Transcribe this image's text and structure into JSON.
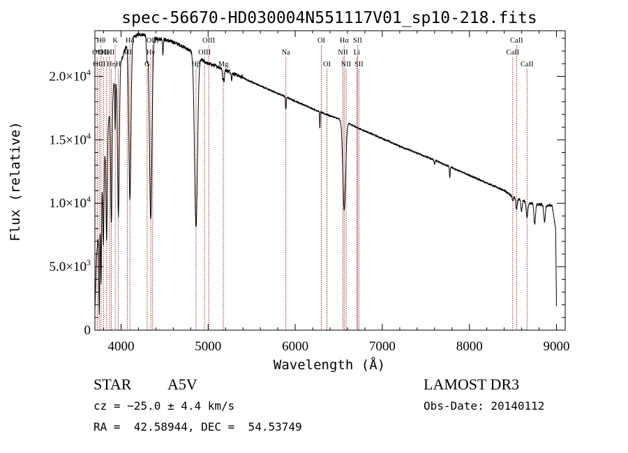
{
  "chart_data": {
    "type": "line",
    "title": "spec-56670-HD030004N551117V01_sp10-218.fits",
    "xlabel": "Wavelength (Å)",
    "ylabel": "Flux (relative)",
    "xlim": [
      3700,
      9100
    ],
    "ylim": [
      0,
      23600
    ],
    "xticks": [
      {
        "value": 4000,
        "label": "4000"
      },
      {
        "value": 5000,
        "label": "5000"
      },
      {
        "value": 6000,
        "label": "6000"
      },
      {
        "value": 7000,
        "label": "7000"
      },
      {
        "value": 8000,
        "label": "8000"
      },
      {
        "value": 9000,
        "label": "9000"
      }
    ],
    "yticks": [
      {
        "value": 0,
        "mant": "0",
        "exp": ""
      },
      {
        "value": 5000,
        "mant": "5.0×10",
        "exp": "3"
      },
      {
        "value": 10000,
        "mant": "1.0×10",
        "exp": "4"
      },
      {
        "value": 15000,
        "mant": "1.5×10",
        "exp": "4"
      },
      {
        "value": 20000,
        "mant": "2.0×10",
        "exp": "4"
      }
    ],
    "continuum": [
      [
        3700,
        1500
      ],
      [
        3720,
        6000
      ],
      [
        3760,
        9000
      ],
      [
        3800,
        13000
      ],
      [
        3850,
        16000
      ],
      [
        3900,
        19000
      ],
      [
        3950,
        20000
      ],
      [
        4000,
        21200
      ],
      [
        4050,
        22200
      ],
      [
        4100,
        22800
      ],
      [
        4150,
        23100
      ],
      [
        4200,
        23300
      ],
      [
        4260,
        23300
      ],
      [
        4320,
        23200
      ],
      [
        4400,
        23000
      ],
      [
        4500,
        22900
      ],
      [
        4600,
        22700
      ],
      [
        4700,
        22400
      ],
      [
        4800,
        22000
      ],
      [
        4900,
        21400
      ],
      [
        5000,
        21000
      ],
      [
        5100,
        20800
      ],
      [
        5200,
        20500
      ],
      [
        5300,
        20200
      ],
      [
        5400,
        19900
      ],
      [
        5500,
        19550
      ],
      [
        5600,
        19250
      ],
      [
        5700,
        18950
      ],
      [
        5800,
        18650
      ],
      [
        5900,
        18350
      ],
      [
        6000,
        18050
      ],
      [
        6100,
        17750
      ],
      [
        6200,
        17450
      ],
      [
        6300,
        17150
      ],
      [
        6400,
        16900
      ],
      [
        6500,
        16650
      ],
      [
        6600,
        16350
      ],
      [
        6700,
        16000
      ],
      [
        6800,
        15700
      ],
      [
        6900,
        15400
      ],
      [
        7000,
        15100
      ],
      [
        7200,
        14500
      ],
      [
        7400,
        13950
      ],
      [
        7600,
        13400
      ],
      [
        7800,
        12800
      ],
      [
        8000,
        12200
      ],
      [
        8200,
        11600
      ],
      [
        8400,
        11000
      ],
      [
        8500,
        10500
      ],
      [
        8600,
        10250
      ],
      [
        8700,
        10000
      ],
      [
        8800,
        9900
      ],
      [
        8950,
        9800
      ],
      [
        8990,
        8000
      ],
      [
        9000,
        1800
      ]
    ],
    "absorption_lines": [
      {
        "center": 3750,
        "depth": 7000,
        "width": 5
      },
      {
        "center": 3771,
        "depth": 6500,
        "width": 5
      },
      {
        "center": 3798,
        "depth": 6000,
        "width": 6
      },
      {
        "center": 3835,
        "depth": 8000,
        "width": 7
      },
      {
        "center": 3889,
        "depth": 10000,
        "width": 8
      },
      {
        "center": 3933,
        "depth": 4000,
        "width": 4
      },
      {
        "center": 3970,
        "depth": 11500,
        "width": 10
      },
      {
        "center": 4102,
        "depth": 12500,
        "width": 12
      },
      {
        "center": 4300,
        "depth": 2000,
        "width": 8
      },
      {
        "center": 4341,
        "depth": 14500,
        "width": 14
      },
      {
        "center": 4481,
        "depth": 1200,
        "width": 4
      },
      {
        "center": 4861,
        "depth": 13500,
        "width": 17
      },
      {
        "center": 5169,
        "depth": 900,
        "width": 5
      },
      {
        "center": 5183,
        "depth": 900,
        "width": 5
      },
      {
        "center": 5270,
        "depth": 500,
        "width": 5
      },
      {
        "center": 5890,
        "depth": 800,
        "width": 3
      },
      {
        "center": 5896,
        "depth": 700,
        "width": 3
      },
      {
        "center": 6283,
        "depth": 1300,
        "width": 3
      },
      {
        "center": 6563,
        "depth": 7000,
        "width": 16
      },
      {
        "center": 7600,
        "depth": 300,
        "width": 5
      },
      {
        "center": 7775,
        "depth": 900,
        "width": 4
      },
      {
        "center": 8498,
        "depth": 350,
        "width": 6
      },
      {
        "center": 8542,
        "depth": 900,
        "width": 8
      },
      {
        "center": 8598,
        "depth": 900,
        "width": 8
      },
      {
        "center": 8662,
        "depth": 1200,
        "width": 9
      },
      {
        "center": 8750,
        "depth": 1600,
        "width": 9
      },
      {
        "center": 8863,
        "depth": 1300,
        "width": 9
      }
    ],
    "line_markers": [
      {
        "wave": 3727,
        "row": 2,
        "label": "OII"
      },
      {
        "wave": 3750,
        "row": 3,
        "label": "OIII"
      },
      {
        "wave": 3770,
        "row": 1,
        "label": "Hθ"
      },
      {
        "wave": 3798,
        "row": 2,
        "label": "OII"
      },
      {
        "wave": 3835,
        "row": 2,
        "label": "HeI"
      },
      {
        "wave": 3869,
        "row": 2,
        "label": "OII"
      },
      {
        "wave": 3889,
        "row": 3,
        "label": "Hη"
      },
      {
        "wave": 3934,
        "row": 1,
        "label": "K"
      },
      {
        "wave": 3969,
        "row": 3,
        "label": "H"
      },
      {
        "wave": 4072,
        "row": 2,
        "label": "SII"
      },
      {
        "wave": 4102,
        "row": 1,
        "label": "Hδ"
      },
      {
        "wave": 4300,
        "row": 3,
        "label": "G"
      },
      {
        "wave": 4341,
        "row": 2,
        "label": "Hγ"
      },
      {
        "wave": 4363,
        "row": 1,
        "label": "OIII"
      },
      {
        "wave": 4861,
        "row": 3,
        "label": "Hβ"
      },
      {
        "wave": 4959,
        "row": 2,
        "label": "OIII"
      },
      {
        "wave": 5007,
        "row": 1,
        "label": "OIII"
      },
      {
        "wave": 5175,
        "row": 3,
        "label": "Mg"
      },
      {
        "wave": 5893,
        "row": 2,
        "label": "Na"
      },
      {
        "wave": 6300,
        "row": 1,
        "label": "OI"
      },
      {
        "wave": 6364,
        "row": 3,
        "label": "OI"
      },
      {
        "wave": 6548,
        "row": 2,
        "label": "NII"
      },
      {
        "wave": 6563,
        "row": 1,
        "label": "Hα"
      },
      {
        "wave": 6584,
        "row": 3,
        "label": "NII"
      },
      {
        "wave": 6707,
        "row": 2,
        "label": "Li"
      },
      {
        "wave": 6716,
        "row": 1,
        "label": "SII"
      },
      {
        "wave": 6731,
        "row": 3,
        "label": "SII"
      },
      {
        "wave": 8498,
        "row": 2,
        "label": "CaII"
      },
      {
        "wave": 8542,
        "row": 1,
        "label": "CaII"
      },
      {
        "wave": 8662,
        "row": 3,
        "label": "CaII"
      }
    ],
    "grid": false,
    "legend": "none"
  },
  "info": {
    "class": "STAR",
    "subclass": "A5V",
    "survey": "LAMOST DR3",
    "cz": "cz = −25.0 ± 4.4 km/s",
    "obs_date": "Obs-Date: 20140112",
    "radec": "RA =  42.58944, DEC =  54.53749"
  },
  "colors": {
    "spectrum": "#000000",
    "marker": "#b22222",
    "axis": "#000000"
  }
}
